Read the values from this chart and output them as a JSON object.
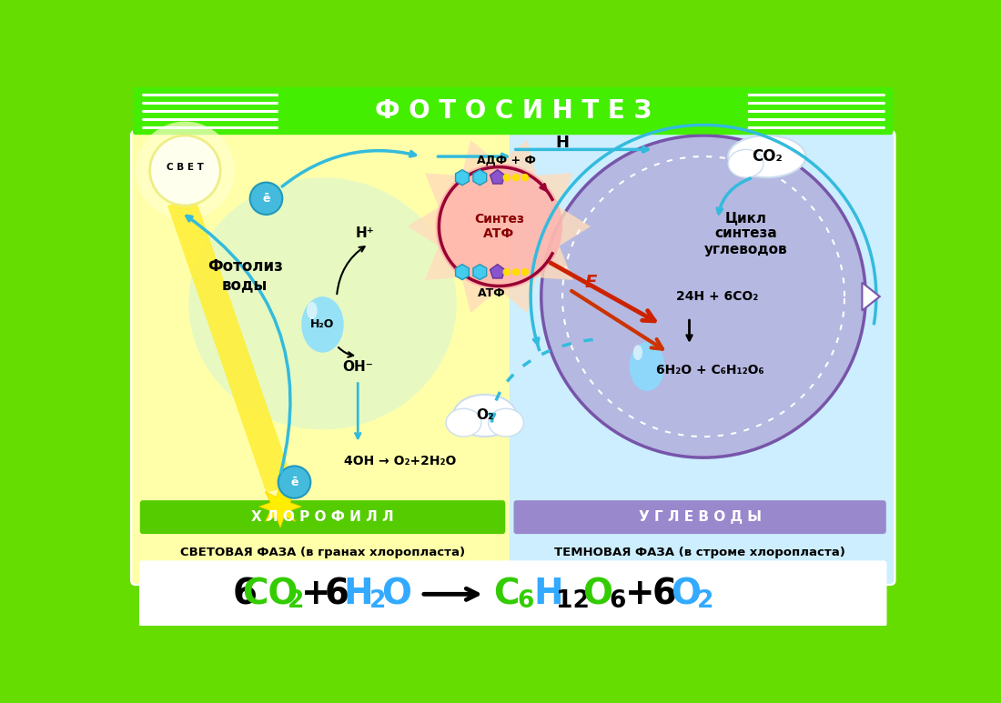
{
  "bg_outer": "#66dd00",
  "bg_left": "#ffffaa",
  "bg_right": "#cceeff",
  "title_bg": "#44ee00",
  "title_text": "Ф О Т О С И Н Т Е З",
  "title_color": "#ffffff",
  "chlorophyll_bg": "#55cc00",
  "chlorophyll_text": "Х Л О Р О Ф И Л Л",
  "uglevody_bg": "#9988cc",
  "uglevody_text": "У Г Л Е В О Д Ы",
  "svetovaya_text": "СВЕТОВАЯ ФАЗА (в гранах хлоропласта)",
  "temnovaya_text": "ТЕМНОВАЯ ФАЗА (в строме хлоропласта)",
  "svet_text": "С В Е Т",
  "fotoliz_text": "Фотолиз\nводы",
  "sintez_atf_text": "Синтез\nАТФ",
  "tsikl_text": "Цикл\nсинтеза\nуглеводов",
  "h2o_text": "H₂O",
  "oh_text": "OH⁻",
  "hplus_text": "H⁺",
  "adf_text": "АДФ + Ф",
  "atf_text": "АТФ",
  "h_text": "H",
  "reaction_text": "4OH → O₂+2H₂O",
  "o2_text": "O₂",
  "co2_text": "CO₂",
  "formula_24h": "24H + 6CO₂",
  "formula_products": "6H₂O + C₆H₁₂O₆",
  "e_text": "E",
  "arrow_color": "#33bbdd",
  "red_arrow": "#cc2200",
  "yellow_color": "#ffdd00",
  "purple_color": "#8855cc",
  "cyan_color": "#44ccee"
}
